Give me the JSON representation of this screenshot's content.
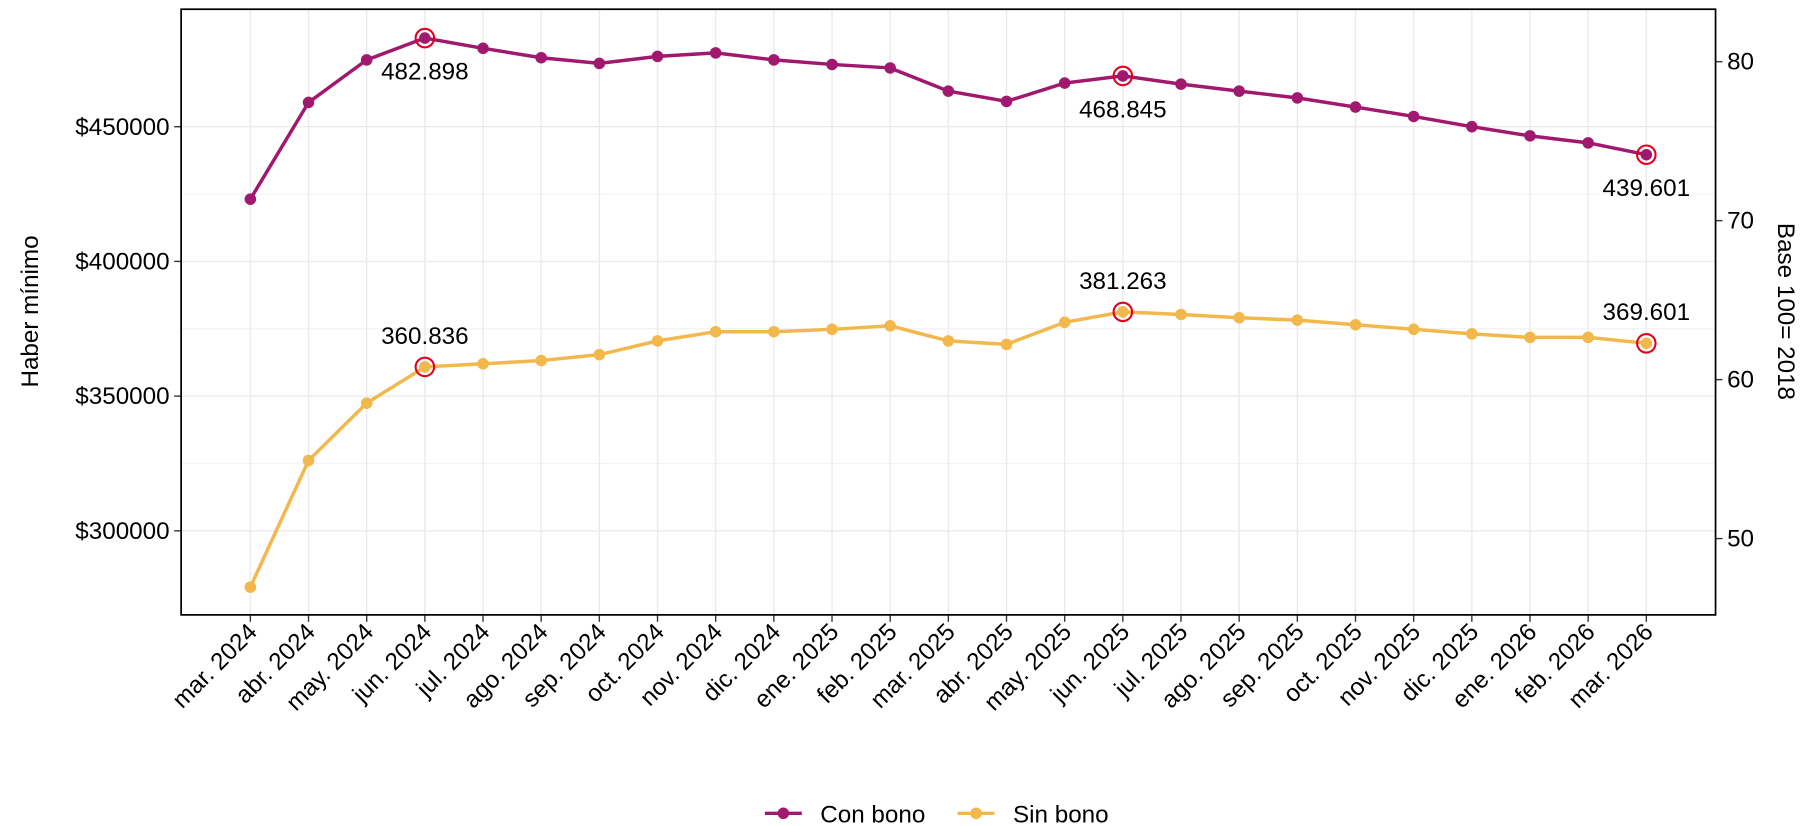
{
  "chart_data": {
    "type": "line",
    "y_label": "Haber mínimo",
    "y2_label": "Base 100= 2018",
    "categories": [
      "mar. 2024",
      "abr. 2024",
      "may. 2024",
      "jun. 2024",
      "jul. 2024",
      "ago. 2024",
      "sep. 2024",
      "oct. 2024",
      "nov. 2024",
      "dic. 2024",
      "ene. 2025",
      "feb. 2025",
      "mar. 2025",
      "abr. 2025",
      "may. 2025",
      "jun. 2025",
      "jul. 2025",
      "ago. 2025",
      "sep. 2025",
      "oct. 2025",
      "nov. 2025",
      "dic. 2025",
      "ene. 2026",
      "feb. 2026",
      "mar. 2026"
    ],
    "series": [
      {
        "name": "Con bono",
        "color": "#a0196e",
        "values": [
          423100,
          459000,
          474800,
          482898,
          479100,
          475600,
          473500,
          476100,
          477400,
          474800,
          473100,
          471800,
          463200,
          459400,
          466200,
          468845,
          465800,
          463200,
          460700,
          457300,
          453800,
          450000,
          446600,
          444000,
          439601
        ],
        "value_labels": [
          null,
          null,
          null,
          "482.898",
          null,
          null,
          null,
          null,
          null,
          null,
          null,
          null,
          null,
          null,
          null,
          "468.845",
          null,
          null,
          null,
          null,
          null,
          null,
          null,
          null,
          "439.601"
        ]
      },
      {
        "name": "Sin bono",
        "color": "#f2b84b",
        "values": [
          279100,
          326100,
          347400,
          360836,
          362000,
          363200,
          365400,
          370500,
          373900,
          373900,
          374800,
          376100,
          370500,
          369200,
          377400,
          381263,
          380300,
          379100,
          378200,
          376500,
          374800,
          373100,
          371800,
          371800,
          369601
        ],
        "value_labels": [
          null,
          null,
          null,
          "360.836",
          null,
          null,
          null,
          null,
          null,
          null,
          null,
          null,
          null,
          null,
          null,
          "381.263",
          null,
          null,
          null,
          null,
          null,
          null,
          null,
          null,
          "369.601"
        ]
      }
    ],
    "highlight_color": "#e3001b",
    "ylim": [
      268800,
      493600
    ],
    "yticks": [
      {
        "value": 300000,
        "label": "$300000"
      },
      {
        "value": 350000,
        "label": "$350000"
      },
      {
        "value": 400000,
        "label": "$400000"
      },
      {
        "value": 450000,
        "label": "$450000"
      }
    ],
    "y2lim": [
      45.2,
      83.3
    ],
    "y2ticks": [
      50,
      60,
      70,
      80
    ],
    "grid": true,
    "legend": "bottom"
  }
}
